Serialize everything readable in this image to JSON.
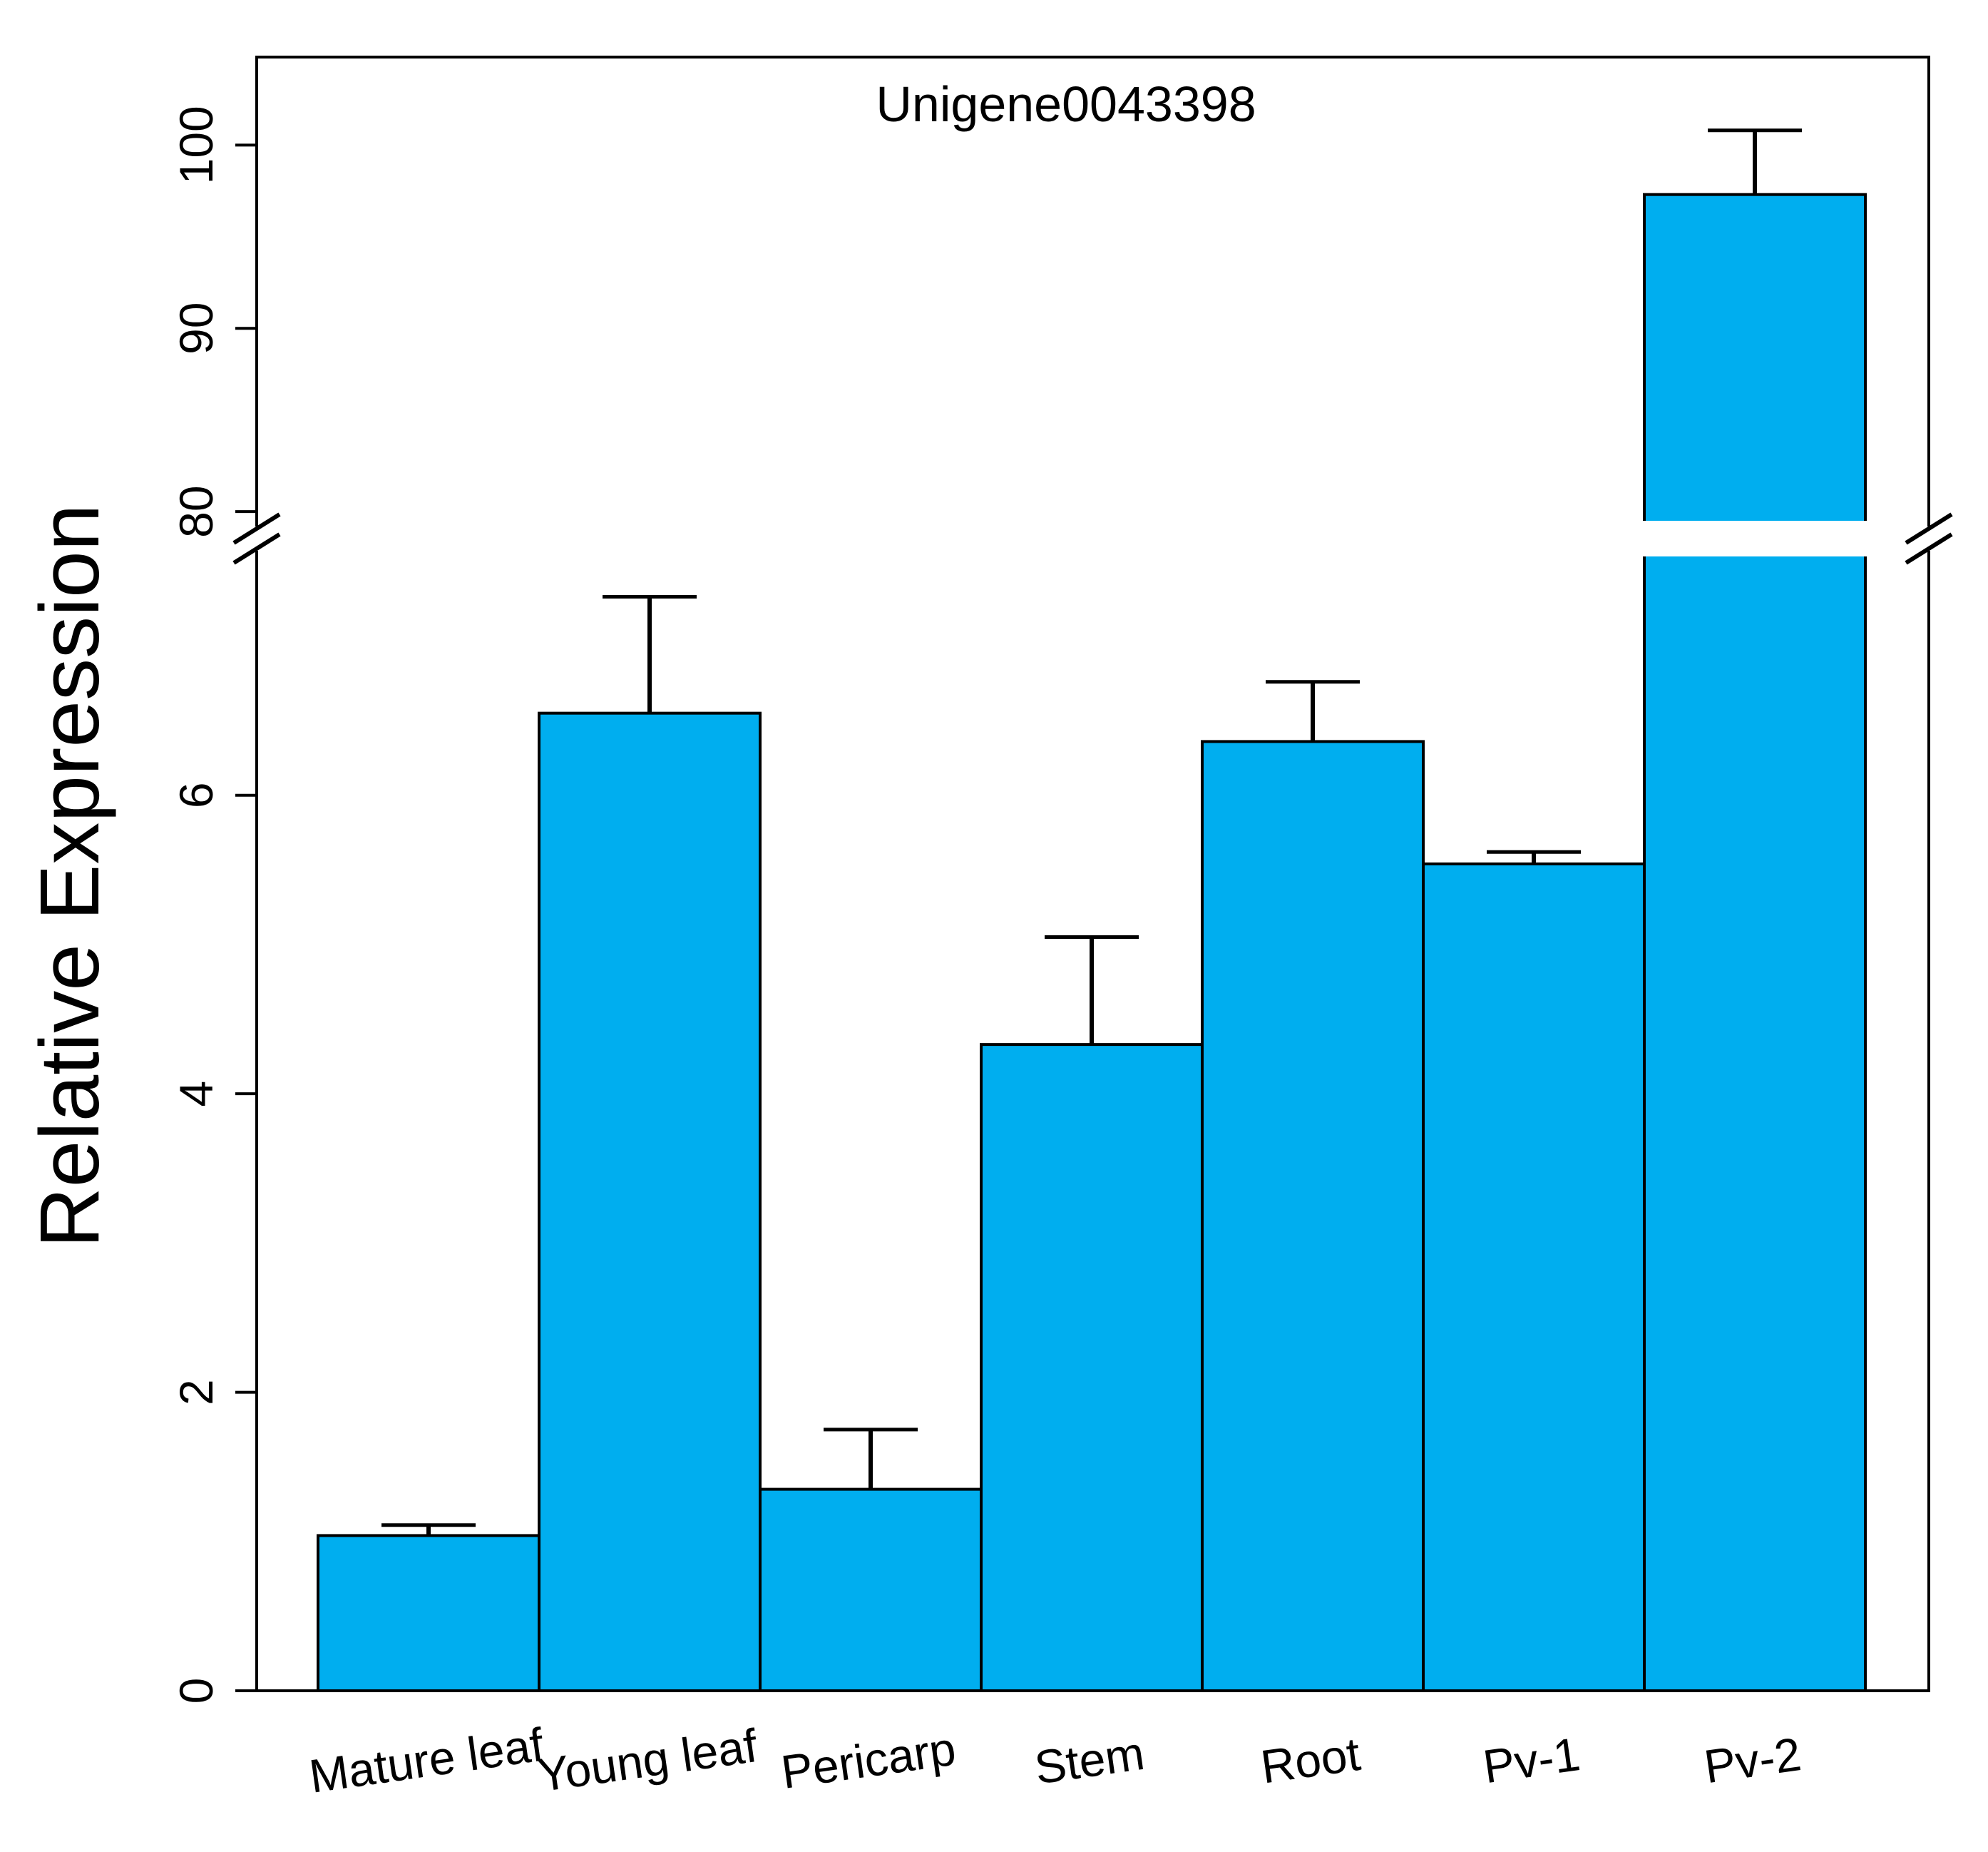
{
  "chart_data": {
    "type": "bar",
    "title": "Unigene0043398",
    "ylabel": "Relative Expression",
    "xlabel": "",
    "categories": [
      "Mature leaf",
      "Young leaf",
      "Pericarp",
      "Stem",
      "Root",
      "Pv-1",
      "Pv-2"
    ],
    "values": [
      1.04,
      6.55,
      1.35,
      4.33,
      6.36,
      5.54,
      97.3
    ],
    "errors": [
      0.07,
      0.78,
      0.4,
      0.72,
      0.4,
      0.08,
      3.5
    ],
    "broken_axis": {
      "lower_range": [
        0,
        7.6
      ],
      "upper_range": [
        79.5,
        104.8
      ],
      "lower_ticks": [
        "0",
        "2",
        "4",
        "6"
      ],
      "upper_ticks": [
        "80",
        "90",
        "100"
      ]
    },
    "bar_color": "#00AEEF",
    "grid": false,
    "legend": "none"
  }
}
